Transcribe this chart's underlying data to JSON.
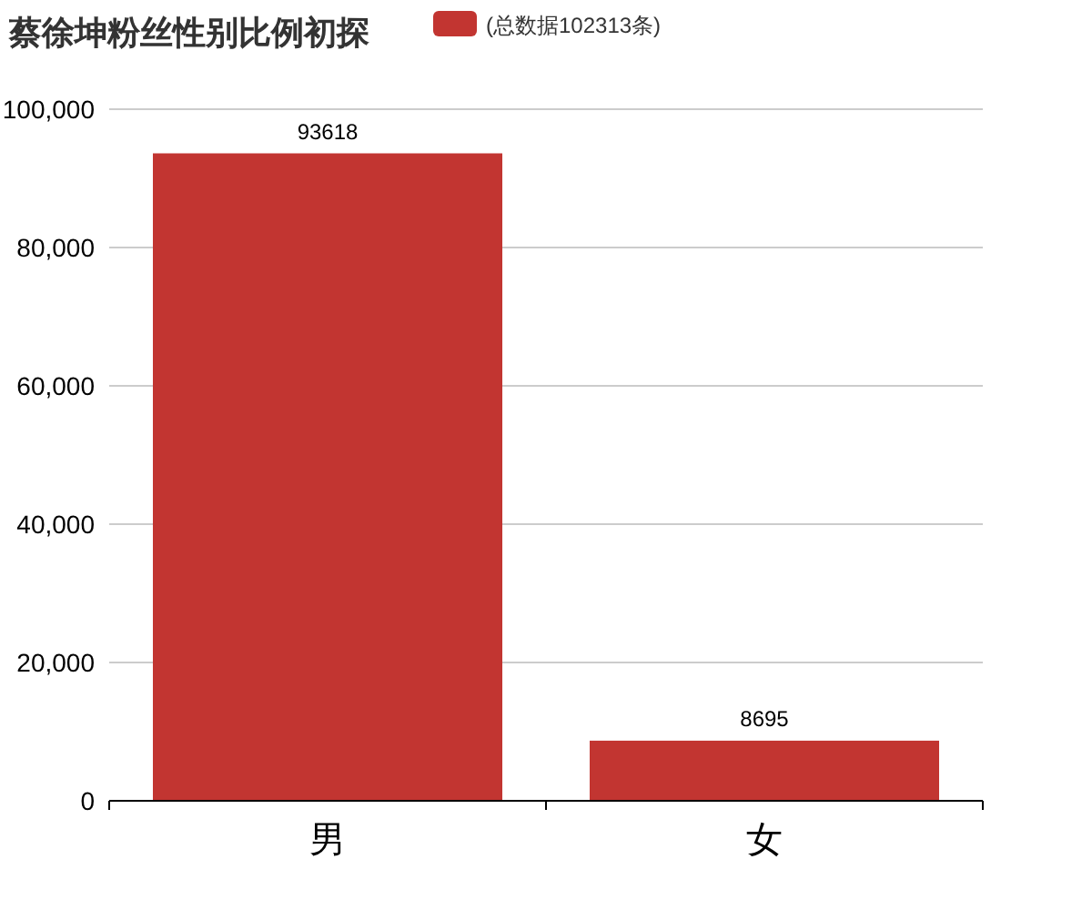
{
  "chart_data": {
    "type": "bar",
    "title": "蔡徐坤粉丝性别比例初探",
    "categories": [
      "男",
      "女"
    ],
    "series": [
      {
        "name": "(总数据102313条)",
        "color": "#c23531",
        "values": [
          93618,
          8695
        ]
      }
    ],
    "ylim": [
      0,
      100000
    ],
    "yticks": [
      0,
      {
        "value": 20000,
        "label": "20,000"
      },
      {
        "value": 40000,
        "label": "40,000"
      },
      {
        "value": 60000,
        "label": "60,000"
      },
      {
        "value": 80000,
        "label": "80,000"
      },
      {
        "value": 100000,
        "label": "100,000"
      }
    ],
    "grid": "y",
    "legend": "top",
    "data_labels": true
  }
}
